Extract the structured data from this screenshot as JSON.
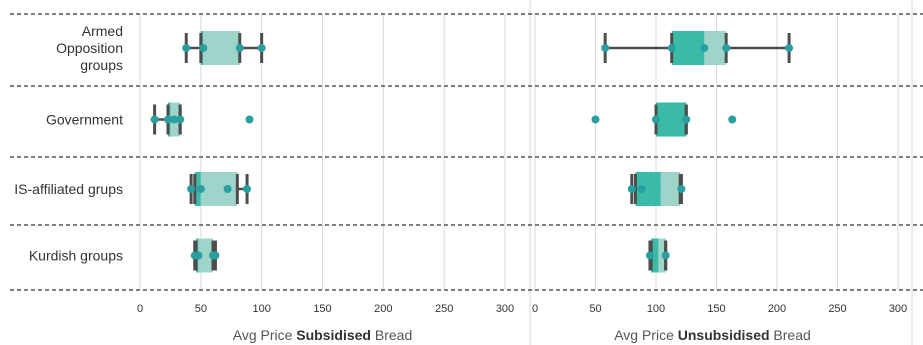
{
  "chart_data": {
    "type": "boxplot",
    "categories": [
      "Armed Opposition groups",
      "Government",
      "IS-affiliated grups",
      "Kurdish groups"
    ],
    "category_lines": [
      [
        "Armed",
        "Opposition",
        "groups"
      ],
      [
        "Government"
      ],
      [
        "IS-affiliated grups"
      ],
      [
        "Kurdish groups"
      ]
    ],
    "colors": {
      "lower_box": "#3bbaa8",
      "upper_box": "#9ed4ca",
      "whisker": "#4d4d4d",
      "point": "#2a9fa0",
      "separator": "#555555",
      "grid": "#d9d9d9"
    },
    "panels": [
      {
        "xlabel_prefix": "Avg Price ",
        "xlabel_bold": "Subsidised",
        "xlabel_suffix": " Bread",
        "xlim": [
          0,
          300
        ],
        "xticks": [
          0,
          50,
          100,
          150,
          200,
          250,
          300
        ],
        "boxes": [
          {
            "category": "Armed Opposition groups",
            "whisker_low": 38,
            "q1": 50,
            "median": 52,
            "q3": 82,
            "whisker_high": 100,
            "points": [
              38,
              52,
              82,
              100
            ]
          },
          {
            "category": "Government",
            "whisker_low": 12,
            "q1": 23,
            "median": 25,
            "q3": 33,
            "whisker_high": 33,
            "points": [
              12,
              23,
              28,
              33,
              90
            ]
          },
          {
            "category": "IS-affiliated grups",
            "whisker_low": 42,
            "q1": 45,
            "median": 50,
            "q3": 80,
            "whisker_high": 88,
            "points": [
              42,
              50,
              72,
              88
            ]
          },
          {
            "category": "Kurdish groups",
            "whisker_low": 45,
            "q1": 46,
            "median": 48,
            "q3": 60,
            "whisker_high": 62,
            "points": [
              45,
              48,
              60,
              62
            ]
          }
        ]
      },
      {
        "xlabel_prefix": "Avg Price ",
        "xlabel_bold": "Unsubsidised",
        "xlabel_suffix": " Bread",
        "xlim": [
          0,
          300
        ],
        "xticks": [
          0,
          50,
          100,
          150,
          200,
          250,
          300
        ],
        "boxes": [
          {
            "category": "Armed Opposition groups",
            "whisker_low": 58,
            "q1": 113,
            "median": 140,
            "q3": 158,
            "whisker_high": 210,
            "points": [
              58,
              113,
              140,
              158,
              210
            ]
          },
          {
            "category": "Government",
            "whisker_low": 100,
            "q1": 100,
            "median": 125,
            "q3": 125,
            "whisker_high": 125,
            "points": [
              50,
              100,
              125,
              163
            ]
          },
          {
            "category": "IS-affiliated grups",
            "whisker_low": 80,
            "q1": 83,
            "median": 104,
            "q3": 120,
            "whisker_high": 121,
            "points": [
              80,
              88,
              121
            ]
          },
          {
            "category": "Kurdish groups",
            "whisker_low": 95,
            "q1": 96,
            "median": 102,
            "q3": 108,
            "whisker_high": 108,
            "points": [
              95,
              108
            ]
          }
        ]
      }
    ]
  }
}
